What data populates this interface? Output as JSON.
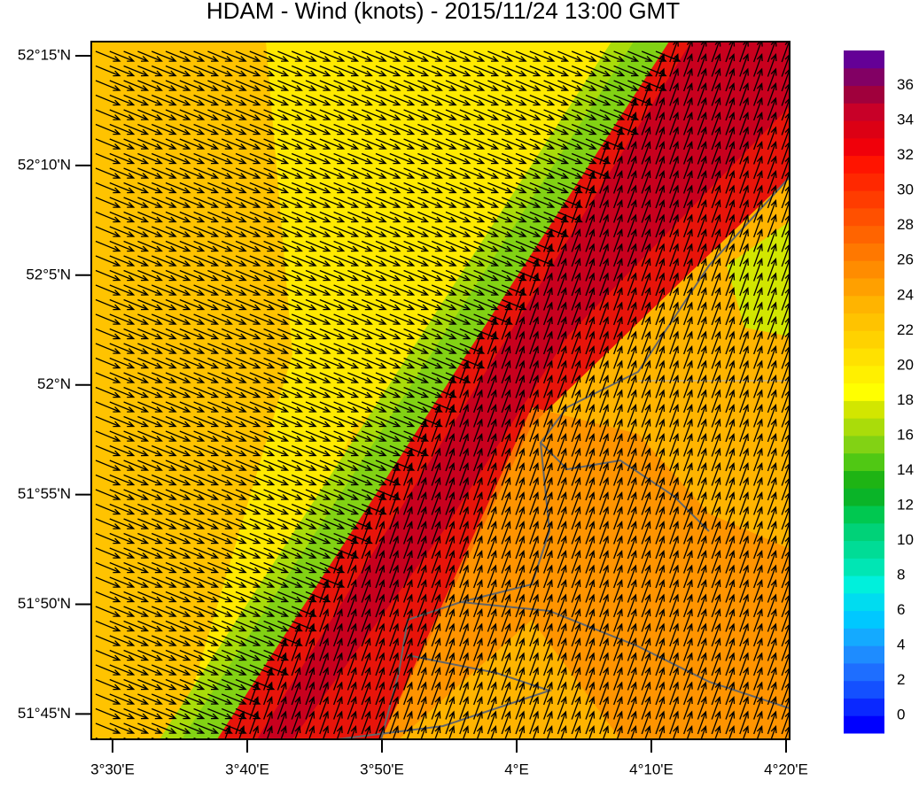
{
  "title": "HDAM - Wind (knots)  -  2015/11/24  13:00 GMT",
  "x_axis": {
    "ticks": [
      "3°30'E",
      "3°40'E",
      "3°50'E",
      "4°E",
      "4°10'E",
      "4°20'E"
    ]
  },
  "y_axis": {
    "ticks": [
      "52°15'N",
      "52°10'N",
      "52°5'N",
      "52°N",
      "51°55'N",
      "51°50'N",
      "51°45'N"
    ]
  },
  "colorbar": {
    "range": [
      -1,
      38
    ],
    "ticks": [
      0,
      2,
      4,
      6,
      8,
      10,
      12,
      14,
      16,
      18,
      20,
      22,
      24,
      26,
      28,
      30,
      32,
      34,
      36
    ],
    "colors": [
      "#0000ff",
      "#0a28ff",
      "#1450ff",
      "#1e6eff",
      "#1e8cff",
      "#14aaff",
      "#00c8ff",
      "#00dcf0",
      "#00f0dc",
      "#00e6b4",
      "#00dc96",
      "#00d278",
      "#00c850",
      "#0ab428",
      "#1eb414",
      "#50c814",
      "#82d214",
      "#aadc0a",
      "#d2e600",
      "#ffff00",
      "#fff000",
      "#ffe100",
      "#ffd200",
      "#ffc300",
      "#ffb400",
      "#ffa000",
      "#ff8c00",
      "#ff7800",
      "#ff6400",
      "#ff5000",
      "#ff3c00",
      "#ff2800",
      "#ff1400",
      "#f0000a",
      "#dc0014",
      "#c80028",
      "#a0003c",
      "#820064",
      "#640096"
    ]
  }
}
